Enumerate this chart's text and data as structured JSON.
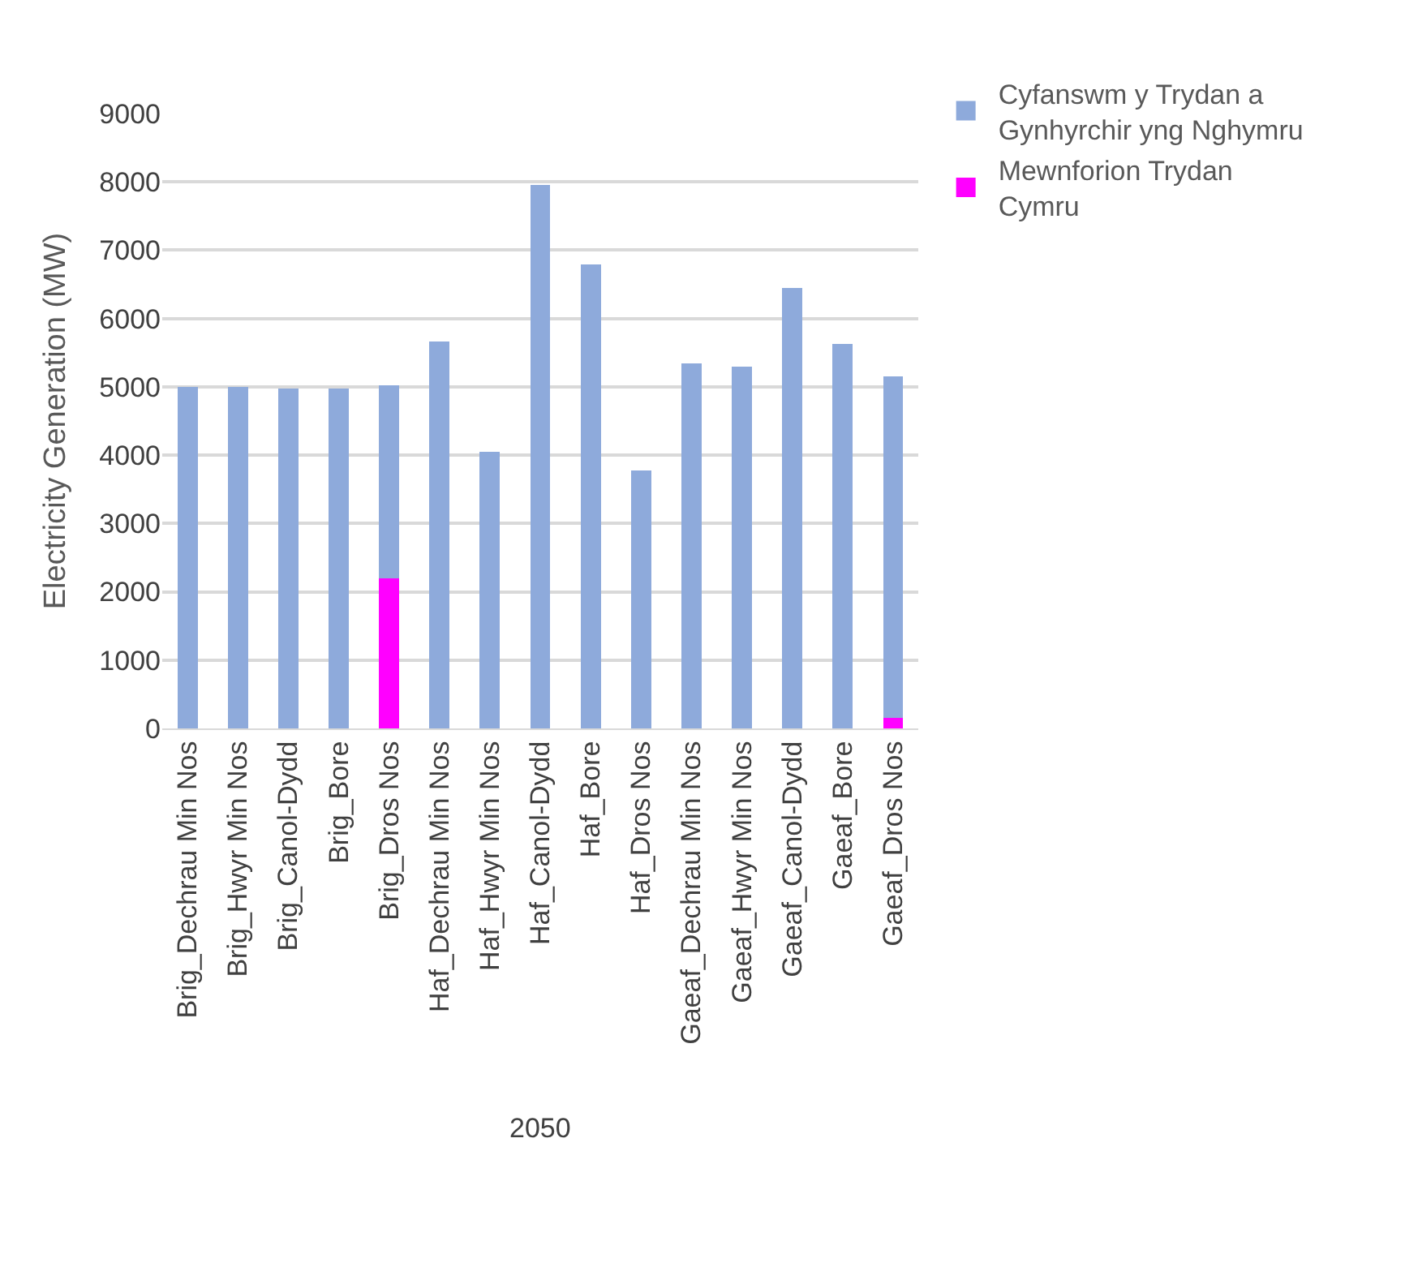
{
  "chart_data": {
    "type": "bar",
    "stacked": true,
    "ylabel": "Electricity Generation (MW)",
    "categories": [
      "Brig_Dechrau Min Nos",
      "Brig_Hwyr Min Nos",
      "Brig_Canol-Dydd",
      "Brig_Bore",
      "Brig_Dros Nos",
      "Haf_Dechrau Min Nos",
      "Haf_Hwyr Min Nos",
      "Haf_Canol-Dydd",
      "Haf_Bore",
      "Haf_Dros Nos",
      "Gaeaf_Dechrau Min Nos",
      "Gaeaf_Hwyr Min Nos",
      "Gaeaf_Canol-Dydd",
      "Gaeaf_Bore",
      "Gaeaf_Dros Nos"
    ],
    "series": [
      {
        "name": "Mewnforion Trydan Cymru",
        "color": "#ff00ff",
        "values": [
          0,
          0,
          0,
          0,
          2200,
          0,
          0,
          0,
          0,
          0,
          0,
          0,
          0,
          0,
          160
        ]
      },
      {
        "name": "Cyfanswm y Trydan a Gynhyrchir yng Nghymru",
        "color": "#8eaadb",
        "values": [
          5000,
          5000,
          4970,
          4980,
          2820,
          5660,
          4050,
          7960,
          6790,
          3780,
          5340,
          5300,
          6450,
          5630,
          4990
        ]
      }
    ],
    "ylim": [
      0,
      9000
    ],
    "yticks": [
      0,
      1000,
      2000,
      3000,
      4000,
      5000,
      6000,
      7000,
      8000,
      9000
    ],
    "grid": "y",
    "legend": "top right",
    "annotations": [
      "2050"
    ]
  }
}
